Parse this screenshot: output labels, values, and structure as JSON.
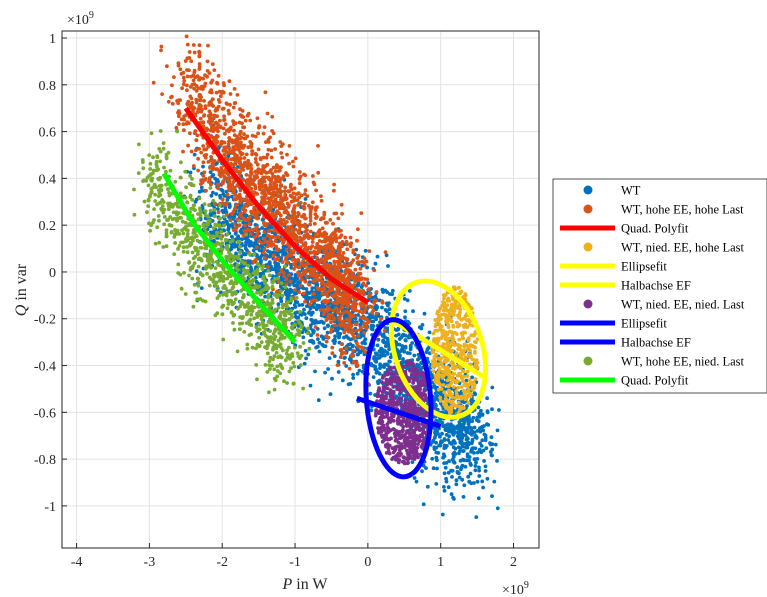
{
  "chart_data": {
    "type": "scatter",
    "xlabel_var": "P",
    "xlabel_unit": " in W",
    "ylabel_var": "Q",
    "ylabel_unit": " in var",
    "x_exponent": "×10",
    "x_exponent_power": "9",
    "y_exponent": "×10",
    "y_exponent_power": "9",
    "xlim": [
      -4.2,
      2.35
    ],
    "ylim": [
      -1.18,
      1.03
    ],
    "grid": true,
    "legend_position": "right-outside",
    "xticks": [
      -4,
      -3,
      -2,
      -1,
      0,
      1,
      2
    ],
    "xtick_labels": [
      "-4",
      "-3",
      "-2",
      "-1",
      "0",
      "1",
      "2"
    ],
    "yticks": [
      1,
      0.8,
      0.6,
      0.4,
      0.2,
      0,
      -0.2,
      -0.4,
      -0.6,
      -0.8,
      -1
    ],
    "ytick_labels": [
      "1",
      "0.8",
      "0.6",
      "0.4",
      "0.2",
      "0",
      "-0.2",
      "-0.4",
      "-0.6",
      "-0.8",
      "-1"
    ],
    "series": [
      {
        "name": "WT",
        "kind": "scatter",
        "color": "#0072BD",
        "centerline": [
          [
            -2.2,
            0.28
          ],
          [
            -1.2,
            0.0
          ],
          [
            -0.2,
            -0.2
          ],
          [
            0.8,
            -0.5
          ],
          [
            1.5,
            -0.75
          ]
        ],
        "spread": 0.13
      },
      {
        "name": "WT, hohe EE, hohe Last",
        "kind": "scatter",
        "color": "#D95319",
        "centerline": [
          [
            -2.5,
            0.78
          ],
          [
            -1.8,
            0.45
          ],
          [
            -1.2,
            0.25
          ],
          [
            -0.5,
            0.02
          ],
          [
            -0.1,
            -0.18
          ]
        ],
        "spread": 0.12
      },
      {
        "name": "Quad. Polyfit",
        "kind": "line",
        "color": "#FF0000",
        "points": [
          [
            -2.5,
            0.7
          ],
          [
            -2.0,
            0.48
          ],
          [
            -1.5,
            0.28
          ],
          [
            -1.0,
            0.11
          ],
          [
            -0.5,
            -0.03
          ],
          [
            0.0,
            -0.13
          ]
        ]
      },
      {
        "name": "WT, nied. EE, hohe Last",
        "kind": "scatter",
        "color": "#EDB120",
        "center": [
          1.2,
          -0.34
        ],
        "radius": [
          0.32,
          0.28
        ]
      },
      {
        "name": "Ellipsefit",
        "kind": "line",
        "color": "#FFFF00",
        "ellipse": {
          "center": [
            0.97,
            -0.33
          ],
          "a": 0.67,
          "b": 0.27,
          "angle_deg": -20
        }
      },
      {
        "name": "Halbachse EF",
        "kind": "line",
        "color": "#FFFF00",
        "points": [
          [
            0.3,
            -0.2
          ],
          [
            1.6,
            -0.45
          ]
        ]
      },
      {
        "name": "WT, nied. EE, nied. Last",
        "kind": "scatter",
        "color": "#7E2F8E",
        "center": [
          0.5,
          -0.6
        ],
        "radius": [
          0.4,
          0.22
        ]
      },
      {
        "name": "Ellipsefit",
        "kind": "line",
        "color": "#0000FF",
        "ellipse": {
          "center": [
            0.42,
            -0.54
          ],
          "a": 0.55,
          "b": 0.27,
          "angle_deg": -70
        }
      },
      {
        "name": "Halbachse EF",
        "kind": "line",
        "color": "#0000FF",
        "points": [
          [
            -0.15,
            -0.54
          ],
          [
            1.0,
            -0.66
          ]
        ]
      },
      {
        "name": "WT, hohe EE, nied. Last",
        "kind": "scatter",
        "color": "#77AC30",
        "centerline": [
          [
            -3.0,
            0.4
          ],
          [
            -2.4,
            0.15
          ],
          [
            -1.9,
            0.0
          ],
          [
            -1.4,
            -0.2
          ],
          [
            -1.0,
            -0.3
          ]
        ],
        "spread": 0.1
      },
      {
        "name": "Quad. Polyfit",
        "kind": "line",
        "color": "#00FF00",
        "points": [
          [
            -2.8,
            0.42
          ],
          [
            -2.4,
            0.21
          ],
          [
            -2.0,
            0.05
          ],
          [
            -1.5,
            -0.13
          ],
          [
            -1.0,
            -0.3
          ]
        ]
      }
    ]
  }
}
